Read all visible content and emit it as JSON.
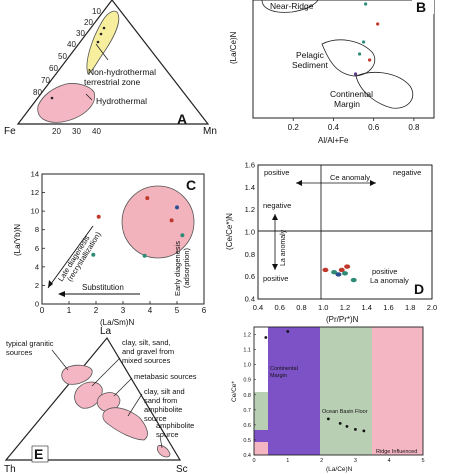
{
  "colors": {
    "pink": "#f4b6c2",
    "yellow": "#f7ef9e",
    "circle_pink": "#f3b3bd",
    "purple": "#7d52c6",
    "green": "#b9cfb3",
    "red_point": "#c0392b",
    "teal_point": "#2e8b76",
    "blue_point": "#2a4f8f",
    "purple_point": "#5b3a8c"
  },
  "panelA": {
    "letter": "A",
    "corner_fe": "Fe",
    "corner_mn": "Mn",
    "label_nonhydro_1": "Non-hydrothermal",
    "label_nonhydro_2": "terrestrial zone",
    "label_hydro": "Hydrothermal",
    "left_ticks": [
      "10",
      "20",
      "30",
      "40",
      "50",
      "60",
      "70",
      "80"
    ],
    "bottom_ticks": [
      "20",
      "30",
      "40"
    ]
  },
  "panelB": {
    "letter": "B",
    "ylabel": "(La/Ce)N",
    "xlabel": "Al/Al+Fe",
    "xticks": [
      "0.2",
      "0.4",
      "0.6",
      "0.8"
    ],
    "region_near_ridge": "Near-Ridge",
    "region_pelagic_1": "Pelagic",
    "region_pelagic_2": "Sediment",
    "region_continental_1": "Continental",
    "region_continental_2": "Margin"
  },
  "panelC": {
    "letter": "C",
    "ylabel": "(La/Yb)N",
    "xlabel": "(La/Sm)N",
    "xticks": [
      "0",
      "1",
      "2",
      "3",
      "4",
      "5",
      "6"
    ],
    "yticks": [
      "0",
      "2",
      "4",
      "6",
      "8",
      "10",
      "12",
      "14"
    ],
    "label_late_1": "Late diagenesis",
    "label_late_2": "(recrystallization)",
    "label_substitution": "Substitution",
    "label_early_1": "Early diagenesis",
    "label_early_2": "(adsorption)"
  },
  "panelD": {
    "letter": "D",
    "ylabel": "(Ce/Ce*)N",
    "xlabel": "(Pr/Pr*)N",
    "xticks": [
      "0.4",
      "0.6",
      "0.8",
      "1.0",
      "1.2",
      "1.4",
      "1.6",
      "1.8",
      "2.0"
    ],
    "yticks": [
      "0.4",
      "0.6",
      "0.8",
      "1.0",
      "1.2",
      "1.4",
      "1.6"
    ],
    "label_positive_tl": "positive",
    "label_ce_anomaly": "Ce anomaly",
    "label_negative_tr": "negative",
    "label_negative_l": "negative",
    "label_la_anomaly": "La anomaly",
    "label_positive_l": "positive",
    "label_positive_br": "positive",
    "label_la_anomaly_br": "La anomaly"
  },
  "panelE": {
    "letter": "E",
    "corner_la": "La",
    "corner_th": "Th",
    "corner_sc": "Sc",
    "label_granitic_1": "typical granitic",
    "label_granitic_2": "sources",
    "label_clay1_1": "clay, silt, sand,",
    "label_clay1_2": "and gravel from",
    "label_clay1_3": "mixed sources",
    "label_metabasic": "metabasic sources",
    "label_clay2_1": "clay, silt and",
    "label_clay2_2": "sand from",
    "label_clay2_3": "amphibolite",
    "label_clay2_4": "source",
    "label_amph_1": "amphibolite",
    "label_amph_2": "source"
  },
  "panelF": {
    "ylabel": "Ce/Ce*",
    "xlabel": "(La/Ce)N",
    "xticks": [
      "0",
      "1",
      "2",
      "3",
      "4",
      "5"
    ],
    "yticks": [
      "0.4",
      "0.5",
      "0.6",
      "0.7",
      "0.8",
      "0.9",
      "1.0",
      "1.1",
      "1.2"
    ],
    "region_continental_1": "Continental",
    "region_continental_2": "Margin",
    "region_ocean": "Ocean Basin Floor",
    "region_ridge": "Ridge Influenced"
  },
  "chart_data": [
    {
      "panel": "B",
      "type": "scatter",
      "xlabel": "Al/Al+Fe",
      "ylabel": "(La/Ce)N",
      "xlim": [
        0.0,
        0.9
      ],
      "points": [
        {
          "x": 0.56,
          "color": "teal"
        },
        {
          "x": 0.62,
          "color": "red"
        },
        {
          "x": 0.55,
          "color": "teal"
        },
        {
          "x": 0.53,
          "color": "teal"
        },
        {
          "x": 0.58,
          "color": "red"
        },
        {
          "x": 0.51,
          "color": "purple"
        }
      ]
    },
    {
      "panel": "C",
      "type": "scatter",
      "xlabel": "(La/Sm)N",
      "ylabel": "(La/Yb)N",
      "xlim": [
        0,
        6
      ],
      "ylim": [
        0,
        14
      ],
      "points": [
        {
          "x": 2.1,
          "y": 9.4,
          "color": "red"
        },
        {
          "x": 1.9,
          "y": 5.3,
          "color": "teal"
        },
        {
          "x": 3.9,
          "y": 11.4,
          "color": "red"
        },
        {
          "x": 5.0,
          "y": 10.4,
          "color": "blue"
        },
        {
          "x": 4.8,
          "y": 9.0,
          "color": "red"
        },
        {
          "x": 5.2,
          "y": 7.4,
          "color": "teal"
        },
        {
          "x": 3.8,
          "y": 5.2,
          "color": "teal"
        }
      ]
    },
    {
      "panel": "D",
      "type": "scatter",
      "xlabel": "(Pr/Pr*)N",
      "ylabel": "(Ce/Ce*)N",
      "xlim": [
        0.4,
        2.0
      ],
      "ylim": [
        0.4,
        1.6
      ],
      "points": [
        {
          "x": 1.02,
          "y": 0.66,
          "color": "red"
        },
        {
          "x": 1.1,
          "y": 0.64,
          "color": "teal"
        },
        {
          "x": 1.17,
          "y": 0.66,
          "color": "red"
        },
        {
          "x": 1.22,
          "y": 0.69,
          "color": "red"
        },
        {
          "x": 1.14,
          "y": 0.62,
          "color": "blue"
        },
        {
          "x": 1.2,
          "y": 0.63,
          "color": "teal"
        },
        {
          "x": 1.28,
          "y": 0.57,
          "color": "teal"
        }
      ]
    },
    {
      "panel": "F",
      "type": "scatter",
      "xlabel": "(La/Ce)N",
      "ylabel": "Ce/Ce*",
      "xlim": [
        0,
        5
      ],
      "ylim": [
        0.4,
        1.25
      ],
      "points": [
        {
          "x": 1.0,
          "y": 1.22
        },
        {
          "x": 3.0,
          "y": 0.57
        },
        {
          "x": 2.75,
          "y": 0.59
        },
        {
          "x": 2.55,
          "y": 0.61
        },
        {
          "x": 2.2,
          "y": 0.64
        },
        {
          "x": 3.25,
          "y": 0.56
        },
        {
          "x": 0.35,
          "y": 1.18
        }
      ]
    }
  ]
}
